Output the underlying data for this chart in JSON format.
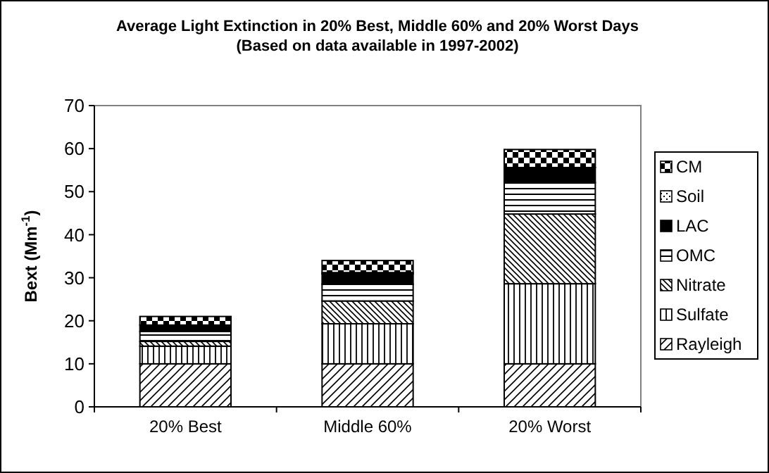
{
  "chart_data": {
    "type": "bar",
    "stacked": true,
    "title": "Average Light Extinction in 20% Best, Middle 60% and 20% Worst Days",
    "subtitle": "(Based on data available in 1997-2002)",
    "ylabel": "Bext (Mm$^{-1}$)",
    "categories": [
      "20% Best",
      "Middle 60%",
      "20% Worst"
    ],
    "series": [
      {
        "name": "Rayleigh",
        "color": "#000000",
        "values": [
          10,
          10,
          10
        ]
      },
      {
        "name": "Sulfate",
        "color": "#000000",
        "values": [
          4.1,
          9.3,
          18.6
        ]
      },
      {
        "name": "Nitrate",
        "color": "#000000",
        "values": [
          1.1,
          5.3,
          16.2
        ]
      },
      {
        "name": "OMC",
        "color": "#000000",
        "values": [
          2.3,
          3.9,
          7.3
        ]
      },
      {
        "name": "LAC",
        "color": "#000000",
        "values": [
          1.5,
          2.4,
          3.5
        ]
      },
      {
        "name": "Soil",
        "color": "#000000",
        "values": [
          null,
          0.3,
          null
        ]
      },
      {
        "name": "CM",
        "color": "#000000",
        "values": [
          2.0,
          2.8,
          4.2
        ]
      }
    ],
    "ylim": [
      0,
      70
    ],
    "yticks": [
      0,
      10,
      20,
      30,
      40,
      50,
      60,
      70
    ],
    "grid": false,
    "legend": "right"
  }
}
